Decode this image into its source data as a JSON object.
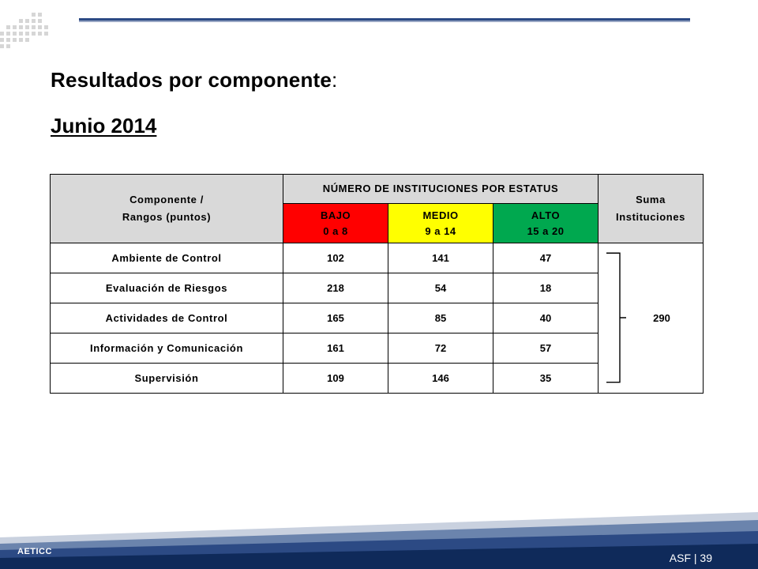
{
  "title": {
    "main": "Resultados por componente",
    "colon": ":"
  },
  "subtitle": "Junio 2014",
  "table": {
    "header_component_line1": "Componente /",
    "header_component_line2": "Rangos (puntos)",
    "header_status": "NÚMERO DE INSTITUCIONES POR ESTATUS",
    "header_sum_line1": "Suma",
    "header_sum_line2": "Instituciones",
    "bands": [
      {
        "label": "BAJO",
        "range": "0 a 8",
        "color": "#ff0000"
      },
      {
        "label": "MEDIO",
        "range": "9 a 14",
        "color": "#ffff00"
      },
      {
        "label": "ALTO",
        "range": "15 a 20",
        "color": "#00a84f"
      }
    ],
    "rows": [
      {
        "component": "Ambiente de Control",
        "bajo": "102",
        "medio": "141",
        "alto": "47"
      },
      {
        "component": "Evaluación de Riesgos",
        "bajo": "218",
        "medio": "54",
        "alto": "18"
      },
      {
        "component": "Actividades de Control",
        "bajo": "165",
        "medio": "85",
        "alto": "40"
      },
      {
        "component": "Información y Comunicación",
        "bajo": "161",
        "medio": "72",
        "alto": "57"
      },
      {
        "component": "Supervisión",
        "bajo": "109",
        "medio": "146",
        "alto": "35"
      }
    ],
    "total": "290"
  },
  "footer": {
    "left": "AETICC",
    "right": "ASF | 39"
  },
  "colors": {
    "accent": "#2c4a84",
    "footer_dark": "#0f2a5a",
    "footer_mid": "#2c4a84"
  }
}
